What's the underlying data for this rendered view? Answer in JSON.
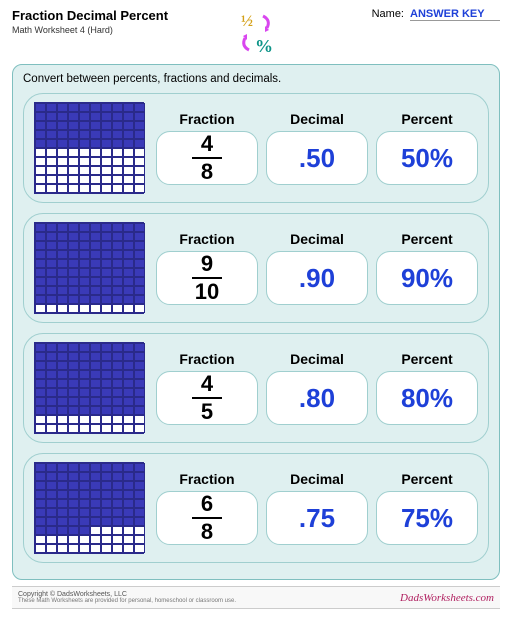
{
  "header": {
    "title": "Fraction Decimal Percent",
    "subtitle": "Math Worksheet 4 (Hard)",
    "name_label": "Name:",
    "name_value": "ANSWER KEY"
  },
  "colors": {
    "answer_color": "#1e40d8",
    "grid_fill": "#3a3ab8",
    "grid_border": "#2a2a8a",
    "panel_bg": "#dff0f0",
    "panel_border": "#7fbfbf",
    "row_border": "#a0cfcf",
    "box_bg": "#ffffff"
  },
  "instruction": "Convert between percents, fractions and decimals.",
  "labels": {
    "fraction": "Fraction",
    "decimal": "Decimal",
    "percent": "Percent"
  },
  "grid": {
    "rows": 10,
    "cols": 10
  },
  "problems": [
    {
      "filled_rows": 5,
      "extra_cells": 0,
      "numerator": "4",
      "denominator": "8",
      "decimal": ".50",
      "percent": "50%"
    },
    {
      "filled_rows": 9,
      "extra_cells": 0,
      "numerator": "9",
      "denominator": "10",
      "decimal": ".90",
      "percent": "90%"
    },
    {
      "filled_rows": 8,
      "extra_cells": 0,
      "numerator": "4",
      "denominator": "5",
      "decimal": ".80",
      "percent": "80%"
    },
    {
      "filled_rows": 7,
      "extra_cells": 5,
      "numerator": "6",
      "denominator": "8",
      "decimal": ".75",
      "percent": "75%"
    }
  ],
  "footer": {
    "copyright": "Copyright © DadsWorksheets, LLC",
    "copyright_sub": "These Math Worksheets are provided for personal, homeschool or classroom use.",
    "site": "DadsWorksheets.com"
  }
}
